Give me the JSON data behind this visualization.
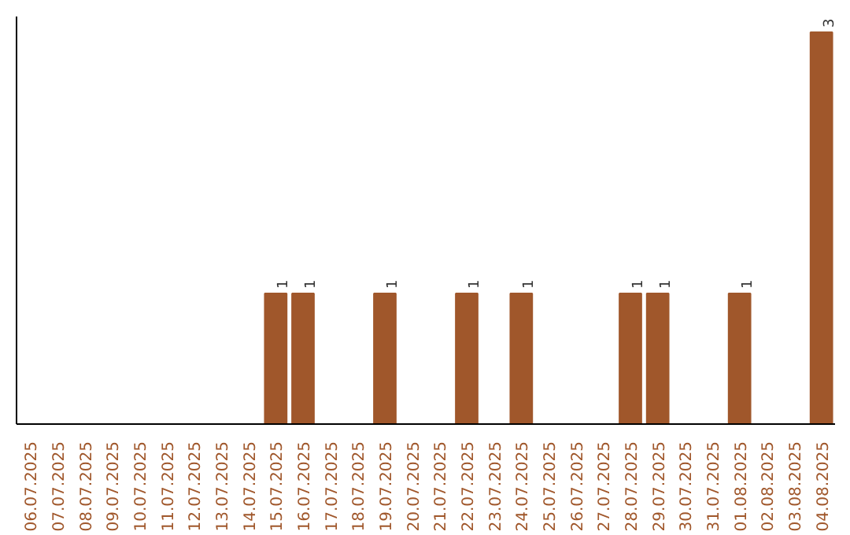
{
  "chart_data": {
    "type": "bar",
    "categories": [
      "06.07.2025",
      "07.07.2025",
      "08.07.2025",
      "09.07.2025",
      "10.07.2025",
      "11.07.2025",
      "12.07.2025",
      "13.07.2025",
      "14.07.2025",
      "15.07.2025",
      "16.07.2025",
      "17.07.2025",
      "18.07.2025",
      "19.07.2025",
      "20.07.2025",
      "21.07.2025",
      "22.07.2025",
      "23.07.2025",
      "24.07.2025",
      "25.07.2025",
      "26.07.2025",
      "27.07.2025",
      "28.07.2025",
      "29.07.2025",
      "30.07.2025",
      "31.07.2025",
      "01.08.2025",
      "02.08.2025",
      "03.08.2025",
      "04.08.2025"
    ],
    "values": [
      0,
      0,
      0,
      0,
      0,
      0,
      0,
      0,
      0,
      1,
      1,
      0,
      0,
      1,
      0,
      0,
      1,
      0,
      1,
      0,
      0,
      0,
      1,
      1,
      0,
      0,
      1,
      0,
      0,
      3
    ],
    "value_labels": [
      null,
      null,
      null,
      null,
      null,
      null,
      null,
      null,
      null,
      "1",
      "1",
      null,
      null,
      "1",
      null,
      null,
      "1",
      null,
      "1",
      null,
      null,
      null,
      "1",
      "1",
      null,
      null,
      "1",
      null,
      null,
      "3"
    ],
    "color": "#a0572b",
    "grid": false,
    "tick_labels": "x"
  }
}
